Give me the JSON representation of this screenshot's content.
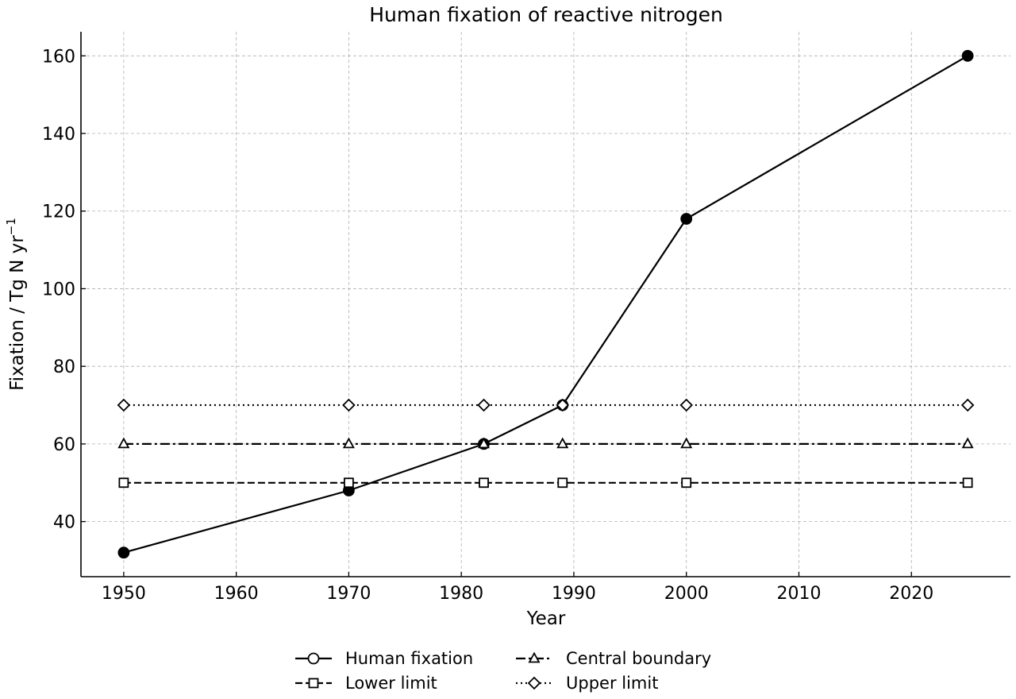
{
  "chart_data": {
    "type": "line",
    "title": "Human fixation of reactive nitrogen",
    "xlabel": "Year",
    "ylabel": "Fixation / Tg N yr",
    "ylabel_superscript": "−1",
    "xlim": [
      1946.2,
      2028.8
    ],
    "ylim": [
      25.8,
      166.2
    ],
    "xticks": [
      1950,
      1960,
      1970,
      1980,
      1990,
      2000,
      2010,
      2020
    ],
    "yticks": [
      40,
      60,
      80,
      100,
      120,
      140,
      160
    ],
    "grid": true,
    "legend_position": "below",
    "series": [
      {
        "name": "Human fixation",
        "marker": "circle",
        "line_style": "solid",
        "point_fill": "#000000",
        "legend_fill": "#ffffff",
        "x": [
          1950,
          1970,
          1982,
          1989,
          2000,
          2025
        ],
        "y": [
          32,
          48,
          60,
          70,
          118,
          160
        ]
      },
      {
        "name": "Lower limit",
        "marker": "square",
        "line_style": "dashed",
        "point_fill": "#ffffff",
        "legend_fill": "#ffffff",
        "x": [
          1950,
          1970,
          1982,
          1989,
          2000,
          2025
        ],
        "y": [
          50,
          50,
          50,
          50,
          50,
          50
        ]
      },
      {
        "name": "Central boundary",
        "marker": "triangle",
        "line_style": "dashdot",
        "point_fill": "#ffffff",
        "legend_fill": "#ffffff",
        "x": [
          1950,
          1970,
          1982,
          1989,
          2000,
          2025
        ],
        "y": [
          60,
          60,
          60,
          60,
          60,
          60
        ]
      },
      {
        "name": "Upper limit",
        "marker": "diamond",
        "line_style": "dotted",
        "point_fill": "#ffffff",
        "legend_fill": "#ffffff",
        "x": [
          1950,
          1970,
          1982,
          1989,
          2000,
          2025
        ],
        "y": [
          70,
          70,
          70,
          70,
          70,
          70
        ]
      }
    ],
    "colors": {
      "line": "#000000",
      "grid": "#b0b0b0"
    }
  }
}
